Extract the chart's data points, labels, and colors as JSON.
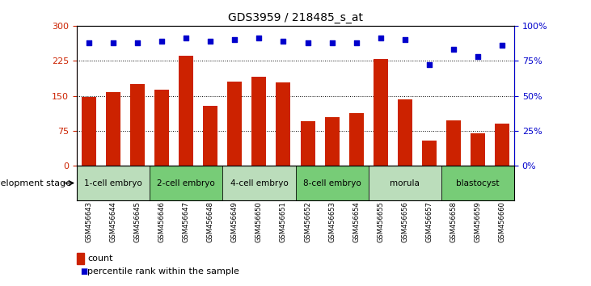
{
  "title": "GDS3959 / 218485_s_at",
  "samples": [
    "GSM456643",
    "GSM456644",
    "GSM456645",
    "GSM456646",
    "GSM456647",
    "GSM456648",
    "GSM456649",
    "GSM456650",
    "GSM456651",
    "GSM456652",
    "GSM456653",
    "GSM456654",
    "GSM456655",
    "GSM456656",
    "GSM456657",
    "GSM456658",
    "GSM456659",
    "GSM456660"
  ],
  "counts": [
    148,
    158,
    175,
    163,
    235,
    128,
    180,
    190,
    178,
    95,
    105,
    113,
    228,
    143,
    55,
    98,
    70,
    90
  ],
  "percentile_ranks": [
    88,
    88,
    88,
    89,
    91,
    89,
    90,
    91,
    89,
    88,
    88,
    88,
    91,
    90,
    72,
    83,
    78,
    86
  ],
  "ylim_left": [
    0,
    300
  ],
  "ylim_right": [
    0,
    100
  ],
  "yticks_left": [
    0,
    75,
    150,
    225,
    300
  ],
  "yticks_right": [
    0,
    25,
    50,
    75,
    100
  ],
  "ytick_labels_right": [
    "0%",
    "25%",
    "50%",
    "75%",
    "100%"
  ],
  "bar_color": "#cc2200",
  "dot_color": "#0000cc",
  "stages": [
    {
      "label": "1-cell embryo",
      "start": 0,
      "end": 3,
      "color": "#bbddbb"
    },
    {
      "label": "2-cell embryo",
      "start": 3,
      "end": 6,
      "color": "#77cc77"
    },
    {
      "label": "4-cell embryo",
      "start": 6,
      "end": 9,
      "color": "#bbddbb"
    },
    {
      "label": "8-cell embryo",
      "start": 9,
      "end": 12,
      "color": "#77cc77"
    },
    {
      "label": "morula",
      "start": 12,
      "end": 15,
      "color": "#bbddbb"
    },
    {
      "label": "blastocyst",
      "start": 15,
      "end": 18,
      "color": "#77cc77"
    }
  ],
  "background_plot": "#ffffff",
  "background_stage_bar": "#aaaaaa",
  "xlabel_stage": "development stage"
}
